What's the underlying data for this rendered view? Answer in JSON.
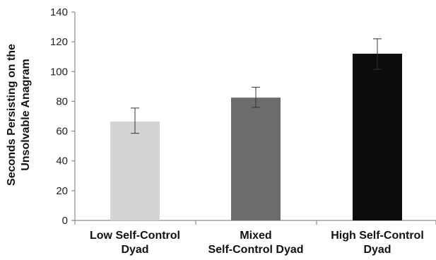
{
  "chart_data": {
    "type": "bar",
    "title": "",
    "xlabel": "",
    "ylabel_lines": [
      "Seconds Persisting on the",
      "Unsolvable Anagram"
    ],
    "ylim": [
      0,
      140
    ],
    "yticks": [
      0,
      20,
      40,
      60,
      80,
      100,
      120,
      140
    ],
    "grid": false,
    "categories": [
      {
        "lines": [
          "Low Self-Control",
          "Dyad"
        ]
      },
      {
        "lines": [
          "Mixed",
          "Self-Control Dyad"
        ]
      },
      {
        "lines": [
          "High Self-Control",
          "Dyad"
        ]
      }
    ],
    "values": [
      66.5,
      82.5,
      112
    ],
    "error_bars": [
      {
        "low": 58.5,
        "high": 75.5
      },
      {
        "low": 76,
        "high": 89.5
      },
      {
        "low": 101.5,
        "high": 122
      }
    ],
    "colors": [
      "#d4d4d4",
      "#6c6c6c",
      "#0d0d0d"
    ],
    "axis_color": "#8c8c8c"
  }
}
